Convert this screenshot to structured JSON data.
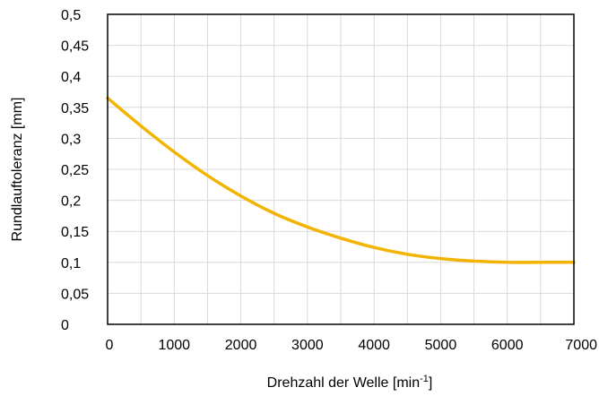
{
  "chart_data": {
    "type": "line",
    "xlabel": "Drehzahl der Welle [min",
    "xlabel_superscript": "-1",
    "xlabel_suffix": "]",
    "ylabel": "Rundlauftoleranz [mm]",
    "xlim": [
      0,
      7000
    ],
    "ylim": [
      0,
      0.5
    ],
    "grid": true,
    "x_minor_step": 500,
    "x_ticks": [
      0,
      1000,
      2000,
      3000,
      4000,
      5000,
      6000,
      7000
    ],
    "x_tick_labels": [
      "0",
      "1000",
      "2000",
      "3000",
      "4000",
      "5000",
      "6000",
      "7000"
    ],
    "y_ticks": [
      0,
      0.05,
      0.1,
      0.15,
      0.2,
      0.25,
      0.3,
      0.35,
      0.4,
      0.45,
      0.5
    ],
    "y_tick_labels": [
      "0",
      "0,05",
      "0,1",
      "0,15",
      "0,2",
      "0,25",
      "0,3",
      "0,35",
      "0,4",
      "0,45",
      "0,5"
    ],
    "line_color": "#f2b400",
    "grid_color": "#d9d9d9",
    "series": [
      {
        "x": [
          0,
          500,
          1000,
          1500,
          2000,
          2500,
          3000,
          3500,
          4000,
          4500,
          5000,
          5500,
          6000,
          6500,
          7000
        ],
        "values": [
          0.365,
          0.32,
          0.278,
          0.24,
          0.207,
          0.179,
          0.157,
          0.139,
          0.124,
          0.113,
          0.106,
          0.102,
          0.1,
          0.1,
          0.1
        ]
      }
    ]
  }
}
